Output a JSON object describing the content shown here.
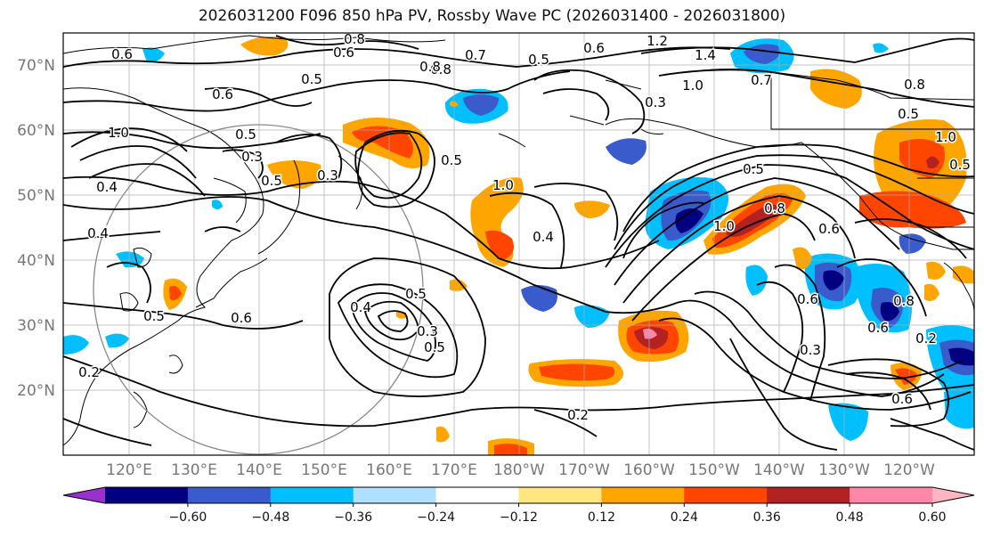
{
  "title": "2026031200 F096 850 hPa PV, Rossby Wave PC (2026031400 - 2026031800)",
  "map": {
    "latitude_labels": [
      "70°N",
      "60°N",
      "50°N",
      "40°N",
      "30°N",
      "20°N"
    ],
    "longitude_labels": [
      "120°E",
      "130°E",
      "140°E",
      "150°E",
      "160°E",
      "170°E",
      "180°W",
      "170°W",
      "160°W",
      "150°W",
      "140°W",
      "130°W",
      "120°W"
    ],
    "contour_labels": [
      "0.6",
      "0.6",
      "0.8",
      "0.5",
      "0.6",
      "1.0",
      "0.5",
      "0.3",
      "0.5",
      "0.3",
      "0.4",
      "0.2",
      "0.5",
      "0.6",
      "0.4",
      "0.5",
      "0.3",
      "0.5",
      "0.8",
      "0.7",
      "0.5",
      "0.6",
      "1.2",
      "1.4",
      "1.0",
      "0.7",
      "0.3",
      "0.8",
      "0.5",
      "1.0",
      "0.5",
      "0.8",
      "1.0",
      "0.4",
      "0.2",
      "1.0",
      "0.5",
      "0.8",
      "0.6",
      "0.3",
      "0.6",
      "0.6",
      "0.6",
      "0.8",
      "0.2",
      "0.5",
      "0.4"
    ]
  },
  "colorbar": {
    "tick_labels": [
      "−0.60",
      "−0.48",
      "−0.36",
      "−0.24",
      "−0.12",
      "0.12",
      "0.24",
      "0.36",
      "0.48",
      "0.60"
    ],
    "colors": [
      "#9932cc",
      "#000080",
      "#3a5bcc",
      "#00bfff",
      "#b0e0ff",
      "#ffffff",
      "#ffe680",
      "#ffa500",
      "#ff4500",
      "#b22222",
      "#ff88aa",
      "#ffb6c1"
    ]
  }
}
